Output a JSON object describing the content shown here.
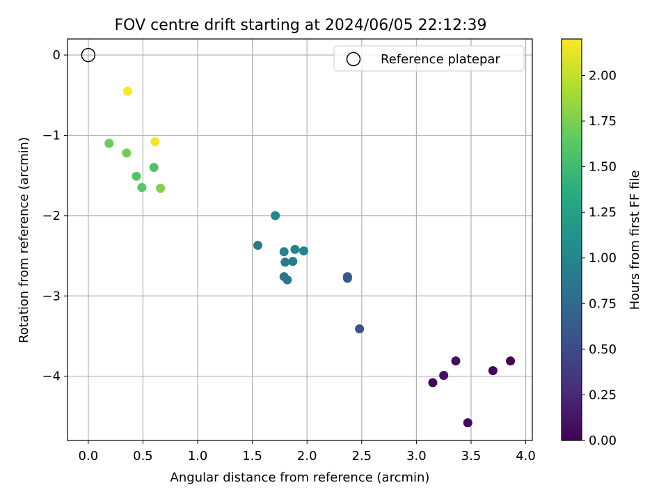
{
  "chart_data": {
    "type": "scatter",
    "title": "FOV centre drift starting at 2024/06/05 22:12:39",
    "xlabel": "Angular distance from reference (arcmin)",
    "ylabel": "Rotation from reference (arcmin)",
    "xlim": [
      -0.19,
      4.06
    ],
    "ylim": [
      -4.8,
      0.2
    ],
    "xticks": [
      0.0,
      0.5,
      1.0,
      1.5,
      2.0,
      2.5,
      3.0,
      3.5,
      4.0
    ],
    "xtick_labels": [
      "0.0",
      "0.5",
      "1.0",
      "1.5",
      "2.0",
      "2.5",
      "3.0",
      "3.5",
      "4.0"
    ],
    "yticks": [
      0,
      -1,
      -2,
      -3,
      -4
    ],
    "ytick_labels": [
      "0",
      "−1",
      "−2",
      "−3",
      "−4"
    ],
    "grid": true,
    "legend": {
      "placement": "upper right",
      "label": "Reference platepar"
    },
    "reference_point": {
      "x": 0.0,
      "y": 0.0
    },
    "colorbar": {
      "label": "Hours from first FF file",
      "range": [
        0.0,
        2.2
      ],
      "colormap": "viridis",
      "ticks": [
        0.0,
        0.25,
        0.5,
        0.75,
        1.0,
        1.25,
        1.5,
        1.75,
        2.0
      ],
      "tick_labels": [
        "0.00",
        "0.25",
        "0.50",
        "0.75",
        "1.00",
        "1.25",
        "1.50",
        "1.75",
        "2.00"
      ]
    },
    "points": [
      {
        "x": 3.47,
        "y": -4.58,
        "hours": 0.05
      },
      {
        "x": 3.15,
        "y": -4.08,
        "hours": 0.03
      },
      {
        "x": 3.25,
        "y": -3.99,
        "hours": 0.1
      },
      {
        "x": 3.36,
        "y": -3.81,
        "hours": 0.08
      },
      {
        "x": 3.7,
        "y": -3.93,
        "hours": 0.04
      },
      {
        "x": 3.86,
        "y": -3.81,
        "hours": 0.02
      },
      {
        "x": 2.48,
        "y": -3.41,
        "hours": 0.55
      },
      {
        "x": 2.37,
        "y": -2.78,
        "hours": 0.6
      },
      {
        "x": 2.37,
        "y": -2.76,
        "hours": 0.62
      },
      {
        "x": 1.79,
        "y": -2.76,
        "hours": 0.85
      },
      {
        "x": 1.82,
        "y": -2.8,
        "hours": 0.87
      },
      {
        "x": 1.8,
        "y": -2.58,
        "hours": 0.9
      },
      {
        "x": 1.87,
        "y": -2.57,
        "hours": 0.92
      },
      {
        "x": 1.79,
        "y": -2.45,
        "hours": 0.95
      },
      {
        "x": 1.89,
        "y": -2.42,
        "hours": 0.97
      },
      {
        "x": 1.97,
        "y": -2.44,
        "hours": 0.99
      },
      {
        "x": 1.55,
        "y": -2.37,
        "hours": 0.88
      },
      {
        "x": 1.71,
        "y": -2.0,
        "hours": 1.0
      },
      {
        "x": 0.44,
        "y": -1.51,
        "hours": 1.6
      },
      {
        "x": 0.49,
        "y": -1.65,
        "hours": 1.62
      },
      {
        "x": 0.6,
        "y": -1.4,
        "hours": 1.58
      },
      {
        "x": 0.66,
        "y": -1.66,
        "hours": 1.78
      },
      {
        "x": 0.19,
        "y": -1.1,
        "hours": 1.7
      },
      {
        "x": 0.35,
        "y": -1.22,
        "hours": 1.72
      },
      {
        "x": 0.61,
        "y": -1.08,
        "hours": 2.17
      },
      {
        "x": 0.36,
        "y": -0.45,
        "hours": 2.2
      }
    ]
  }
}
